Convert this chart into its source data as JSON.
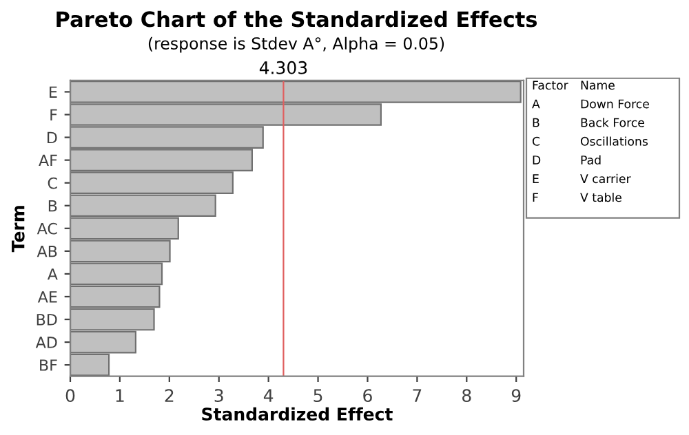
{
  "chart_data": {
    "type": "bar",
    "orientation": "horizontal",
    "title": "Pareto Chart of the Standardized Effects",
    "subtitle": "(response is Stdev A°, Alpha = 0.05)",
    "xlabel": "Standardized Effect",
    "ylabel": "Term",
    "categories": [
      "E",
      "F",
      "D",
      "AF",
      "C",
      "B",
      "AC",
      "AB",
      "A",
      "AE",
      "BD",
      "AD",
      "BF"
    ],
    "values": [
      9.09,
      6.27,
      3.89,
      3.67,
      3.28,
      2.93,
      2.18,
      2.01,
      1.85,
      1.8,
      1.69,
      1.32,
      0.78
    ],
    "color": "#c0c0c0",
    "xlim": [
      0,
      9.15
    ],
    "xticks": [
      0,
      1,
      2,
      3,
      4,
      5,
      6,
      7,
      8,
      9
    ],
    "ref_lines": [
      {
        "axis": "x",
        "value": 4.303,
        "label": "4.303",
        "color": "#e06060"
      }
    ],
    "annotations": [
      "Factor",
      "Name",
      "A",
      "Down Force",
      "B",
      "Back Force",
      "C",
      "Oscillations",
      "D",
      "Pad",
      "E",
      "V carrier",
      "F",
      "V table"
    ],
    "grid": false,
    "legend": false
  }
}
